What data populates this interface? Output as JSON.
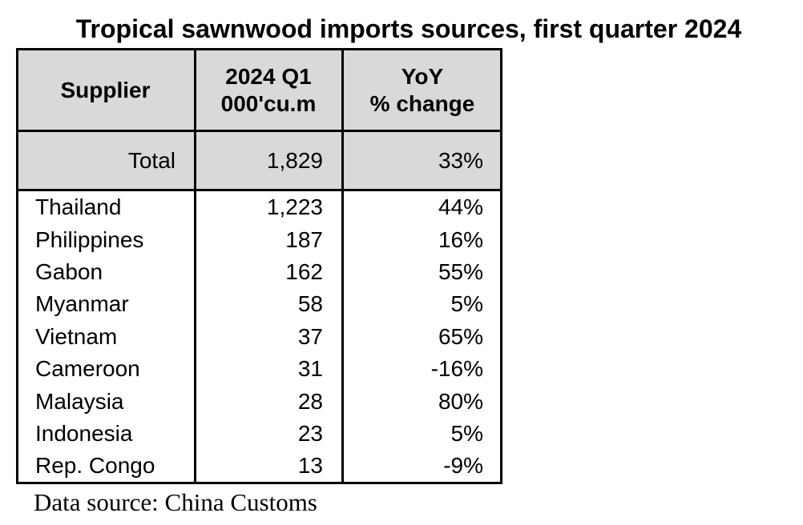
{
  "title": "Tropical sawnwood imports sources, first quarter 2024",
  "table": {
    "header": [
      [
        "Supplier"
      ],
      [
        "2024 Q1",
        "000'cu.m"
      ],
      [
        "YoY",
        "% change"
      ]
    ],
    "total": [
      "Total",
      "1,829",
      "33%"
    ],
    "rows": [
      [
        "Thailand",
        "1,223",
        "44%"
      ],
      [
        "Philippines",
        "187",
        "16%"
      ],
      [
        "Gabon",
        "162",
        "55%"
      ],
      [
        "Myanmar",
        "58",
        "5%"
      ],
      [
        "Vietnam",
        "37",
        "65%"
      ],
      [
        "Cameroon",
        "31",
        "-16%"
      ],
      [
        "Malaysia",
        "28",
        "80%"
      ],
      [
        "Indonesia",
        "23",
        "5%"
      ],
      [
        "Rep. Congo",
        "13",
        "-9%"
      ]
    ]
  },
  "source": "Data source: China Customs"
}
